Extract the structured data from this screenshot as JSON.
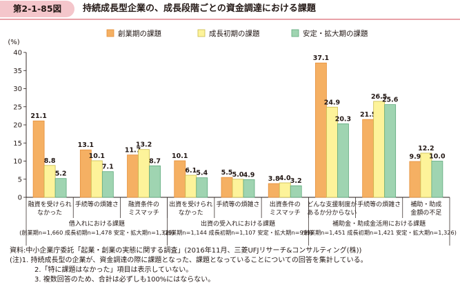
{
  "header": {
    "figure_label": "第2-1-85図",
    "title": "持続成長型企業の、成長段階ごとの資金調達における課題"
  },
  "chart_data": {
    "type": "bar",
    "ylabel": "(%)",
    "ylim": [
      0,
      40
    ],
    "y_ticks": [
      0,
      5,
      10,
      15,
      20,
      25,
      30,
      35,
      40
    ],
    "grid": false,
    "legend_position": "top",
    "series": [
      {
        "name": "創業期の課題",
        "color": "#f5b063",
        "border": "#e58f3a",
        "values": [
          21.1,
          13.1,
          11.7,
          10.1,
          5.5,
          3.8,
          37.1,
          21.5,
          9.9
        ]
      },
      {
        "name": "成長初期の課題",
        "color": "#fdf39a",
        "border": "#c9ba4e",
        "values": [
          8.8,
          10.1,
          13.2,
          6.1,
          5.0,
          4.0,
          24.9,
          26.5,
          12.2
        ]
      },
      {
        "name": "安定・拡大期の課題",
        "color": "#9fd4b1",
        "border": "#5ea97c",
        "values": [
          5.2,
          7.1,
          8.7,
          5.4,
          4.9,
          3.2,
          20.3,
          25.6,
          10.0
        ]
      }
    ],
    "categories": [
      [
        "融資を受けられ",
        "なかった"
      ],
      [
        "手続等の煩雑さ"
      ],
      [
        "融資条件の",
        "ミスマッチ"
      ],
      [
        "出資を受けられ",
        "なかった"
      ],
      [
        "手続等の煩雑さ"
      ],
      [
        "出資条件の",
        "ミスマッチ"
      ],
      [
        "どんな支援制度が",
        "あるか分からない"
      ],
      [
        "手続等の煩雑さ"
      ],
      [
        "補助・助成",
        "金額の不足"
      ]
    ],
    "groups": [
      {
        "label": "借入れにおける課題",
        "n": "(創業期n=1,660 成長初期n=1,478 安定・拡大期n=1,329)"
      },
      {
        "label": "出資の受入れにおける課題",
        "n": "(創業期n=1,144 成長初期n=1,107 安定・拡大期n=999)"
      },
      {
        "label": "補助金・助成金活用における課題",
        "n": "(創業期n=1,451 成長初期n=1,421 安定・拡大期n=1,326)"
      }
    ]
  },
  "notes": {
    "source": "資料:中小企業庁委託「起業・創業の実態に関する調査」(2016年11月、三菱UFJリサーチ&コンサルティング(株))",
    "note1": "(注)1. 持続成長型の企業が、資金調達の際に課題となった、課題となっていることについての回答を集計している。",
    "note2": "2.「特に課題はなかった」項目は表示していない。",
    "note3": "3. 複数回答のため、合計は必ずしも100%にはならない。"
  }
}
